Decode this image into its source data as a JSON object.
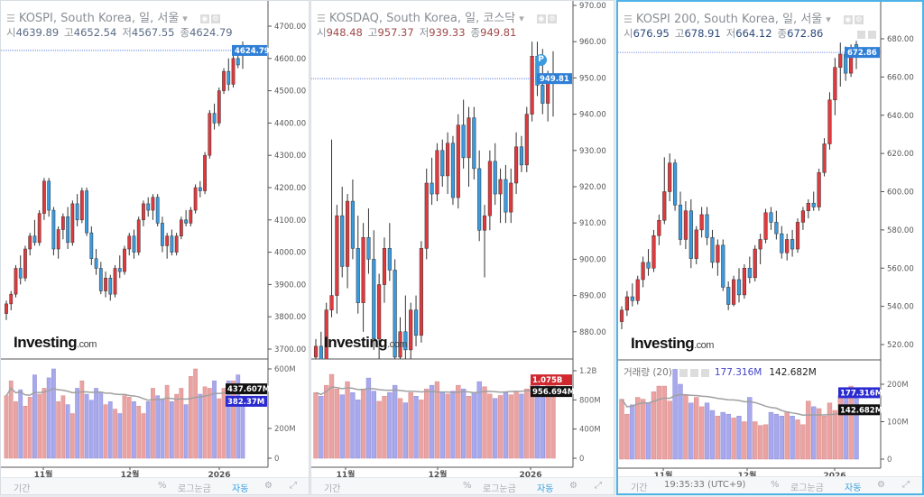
{
  "colors": {
    "up": "#e0393e",
    "down": "#3a9be0",
    "vol_up": "#eaa3a3",
    "vol_down": "#a8a8ec",
    "ma": "#a0a0a0",
    "last_line": "#4a6fe0"
  },
  "panels": [
    {
      "header": {
        "title": "KOSPI, South Korea, 일, 서울",
        "ohlc_labels": [
          "시",
          "고",
          "저",
          "종"
        ],
        "ohlc_values": [
          "4639.89",
          "4652.54",
          "4567.55",
          "4624.79"
        ],
        "value_color": "#5a6c86"
      },
      "logo": {
        "main": "Investing",
        "suffix": ".com"
      },
      "price_label": "4624.79",
      "price_label_color": "#2f7fd6",
      "volume_labels": [
        {
          "text": "437.607M",
          "color": "#111111"
        },
        {
          "text": "382.37M",
          "color": "#2a2ad0"
        }
      ],
      "price_ticks": [
        "3700.00",
        "3800.00",
        "3900.00",
        "4000.00",
        "4100.00",
        "4200.00",
        "4300.00",
        "4400.00",
        "4500.00",
        "4600.00",
        "4700.00"
      ],
      "volume_ticks": [
        "0",
        "200M",
        "600M"
      ],
      "date_ticks": [
        "11월",
        "12월",
        "2026"
      ],
      "toolbar": {
        "period": "기간",
        "time": "",
        "percent": "%",
        "log": "로그눈금",
        "auto": "자동"
      }
    },
    {
      "header": {
        "title": "KOSDAQ, South Korea, 일, 코스닥",
        "ohlc_labels": [
          "시",
          "고",
          "저",
          "종"
        ],
        "ohlc_values": [
          "948.48",
          "957.37",
          "939.33",
          "949.81"
        ],
        "value_color": "#a04a4a"
      },
      "logo": {
        "main": "Investing",
        "suffix": ".com"
      },
      "price_label": "949.81",
      "price_label_color": "#2f7fd6",
      "marker": "P",
      "volume_labels": [
        {
          "text": "1.075B",
          "color": "#d0282e"
        },
        {
          "text": "956.694M",
          "color": "#111111"
        }
      ],
      "price_ticks": [
        "880.00",
        "890.00",
        "900.00",
        "910.00",
        "920.00",
        "930.00",
        "940.00",
        "950.00",
        "960.00",
        "970.00"
      ],
      "volume_ticks": [
        "0",
        "400M",
        "800M",
        "1.2B"
      ],
      "date_ticks": [
        "11월",
        "12월",
        "2026"
      ],
      "toolbar": {
        "period": "기간",
        "time": "",
        "percent": "%",
        "log": "로그눈금",
        "auto": "자동"
      }
    },
    {
      "header": {
        "title": "KOSPI 200, South Korea, 일, 서울",
        "ohlc_labels": [
          "시",
          "고",
          "저",
          "종"
        ],
        "ohlc_values": [
          "676.95",
          "678.91",
          "664.12",
          "672.86"
        ],
        "value_color": "#2c4a7a"
      },
      "logo": {
        "main": "Investing",
        "suffix": ".com"
      },
      "price_label": "672.86",
      "price_label_color": "#2f7fd6",
      "volume_legend": {
        "name": "거래량 (20)",
        "value1": "177.316M",
        "value2": "142.682M"
      },
      "volume_labels": [
        {
          "text": "177.316M",
          "color": "#2a2ad0"
        },
        {
          "text": "142.682M",
          "color": "#111111"
        }
      ],
      "price_ticks": [
        "520.00",
        "540.00",
        "560.00",
        "580.00",
        "600.00",
        "620.00",
        "640.00",
        "660.00",
        "680.00"
      ],
      "volume_ticks": [
        "0",
        "100M",
        "200M"
      ],
      "date_ticks": [
        "11월",
        "12월",
        "2026"
      ],
      "toolbar": {
        "period": "기간",
        "time": "19:35:33 (UTC+9)",
        "percent": "%",
        "log": "로그눈금",
        "auto": "자동"
      }
    }
  ],
  "chart_data": [
    {
      "type": "candlestick",
      "title": "KOSPI, South Korea, 일, 서울",
      "ylim": [
        3700,
        4700
      ],
      "volume_ma_period": 20,
      "x_ticks": [
        "11월",
        "12월",
        "2026"
      ],
      "ohlc": [
        [
          3810,
          3850,
          3790,
          3840
        ],
        [
          3840,
          3880,
          3820,
          3870
        ],
        [
          3870,
          3960,
          3860,
          3950
        ],
        [
          3950,
          3990,
          3900,
          3920
        ],
        [
          3920,
          4020,
          3910,
          4010
        ],
        [
          4010,
          4060,
          3990,
          4050
        ],
        [
          4050,
          4100,
          4020,
          4030
        ],
        [
          4030,
          4130,
          4020,
          4120
        ],
        [
          4120,
          4230,
          4100,
          4220
        ],
        [
          4220,
          4230,
          4110,
          4130
        ],
        [
          4130,
          4140,
          3990,
          4010
        ],
        [
          4010,
          4080,
          3980,
          4070
        ],
        [
          4070,
          4120,
          4040,
          4110
        ],
        [
          4110,
          4140,
          4010,
          4030
        ],
        [
          4030,
          4160,
          4020,
          4150
        ],
        [
          4150,
          4180,
          4080,
          4100
        ],
        [
          4100,
          4200,
          4090,
          4190
        ],
        [
          4190,
          4200,
          4050,
          4060
        ],
        [
          4060,
          4080,
          3960,
          3980
        ],
        [
          3980,
          4010,
          3930,
          3950
        ],
        [
          3950,
          3970,
          3870,
          3880
        ],
        [
          3880,
          3940,
          3860,
          3920
        ],
        [
          3920,
          3930,
          3850,
          3870
        ],
        [
          3870,
          3960,
          3860,
          3950
        ],
        [
          3950,
          3990,
          3920,
          3940
        ],
        [
          3940,
          4020,
          3930,
          4010
        ],
        [
          4010,
          4060,
          3990,
          4050
        ],
        [
          4050,
          4070,
          3980,
          4000
        ],
        [
          4000,
          4110,
          3990,
          4100
        ],
        [
          4100,
          4160,
          4080,
          4150
        ],
        [
          4150,
          4170,
          4110,
          4130
        ],
        [
          4130,
          4180,
          4100,
          4170
        ],
        [
          4170,
          4180,
          4080,
          4090
        ],
        [
          4090,
          4110,
          4000,
          4020
        ],
        [
          4020,
          4060,
          3980,
          4050
        ],
        [
          4050,
          4070,
          3990,
          4000
        ],
        [
          4000,
          4060,
          3990,
          4050
        ],
        [
          4050,
          4110,
          4040,
          4100
        ],
        [
          4100,
          4130,
          4080,
          4090
        ],
        [
          4090,
          4140,
          4080,
          4130
        ],
        [
          4130,
          4210,
          4120,
          4200
        ],
        [
          4200,
          4220,
          4170,
          4190
        ],
        [
          4190,
          4310,
          4180,
          4300
        ],
        [
          4300,
          4440,
          4290,
          4430
        ],
        [
          4430,
          4460,
          4380,
          4400
        ],
        [
          4400,
          4510,
          4390,
          4500
        ],
        [
          4500,
          4570,
          4490,
          4560
        ],
        [
          4560,
          4600,
          4500,
          4520
        ],
        [
          4520,
          4610,
          4510,
          4600
        ],
        [
          4600,
          4640,
          4570,
          4580
        ],
        [
          4639.89,
          4652.54,
          4567.55,
          4624.79
        ]
      ],
      "volume_m": [
        420,
        520,
        380,
        460,
        350,
        410,
        560,
        430,
        470,
        540,
        600,
        380,
        420,
        360,
        300,
        470,
        520,
        430,
        390,
        470,
        440,
        360,
        380,
        330,
        300,
        420,
        410,
        380,
        350,
        300,
        380,
        470,
        420,
        400,
        490,
        380,
        430,
        470,
        360,
        550,
        600,
        430,
        480,
        470,
        520,
        400,
        470,
        520,
        520,
        560,
        382.37
      ],
      "volume_ylim_m": [
        0,
        600
      ]
    },
    {
      "type": "candlestick",
      "title": "KOSDAQ, South Korea, 일, 코스닥",
      "ylim": [
        870,
        970
      ],
      "volume_ma_period": 20,
      "x_ticks": [
        "11월",
        "12월",
        "2026"
      ],
      "ohlc": [
        [
          873,
          878,
          868,
          876
        ],
        [
          876,
          880,
          862,
          866
        ],
        [
          866,
          888,
          864,
          886
        ],
        [
          886,
          933,
          884,
          890
        ],
        [
          890,
          915,
          885,
          912
        ],
        [
          912,
          920,
          895,
          898
        ],
        [
          898,
          918,
          892,
          916
        ],
        [
          916,
          922,
          900,
          903
        ],
        [
          903,
          912,
          885,
          888
        ],
        [
          888,
          910,
          880,
          906
        ],
        [
          906,
          914,
          896,
          900
        ],
        [
          900,
          908,
          875,
          878
        ],
        [
          878,
          896,
          870,
          893
        ],
        [
          893,
          906,
          888,
          903
        ],
        [
          903,
          910,
          894,
          897
        ],
        [
          897,
          900,
          870,
          873
        ],
        [
          873,
          884,
          868,
          880
        ],
        [
          880,
          890,
          872,
          875
        ],
        [
          875,
          888,
          870,
          886
        ],
        [
          886,
          890,
          876,
          879
        ],
        [
          879,
          905,
          877,
          903
        ],
        [
          903,
          925,
          900,
          921
        ],
        [
          921,
          928,
          915,
          918
        ],
        [
          918,
          932,
          916,
          930
        ],
        [
          930,
          933,
          920,
          923
        ],
        [
          923,
          935,
          918,
          932
        ],
        [
          932,
          934,
          915,
          917
        ],
        [
          917,
          940,
          914,
          937
        ],
        [
          937,
          944,
          925,
          928
        ],
        [
          928,
          942,
          920,
          939
        ],
        [
          939,
          942,
          922,
          925
        ],
        [
          925,
          930,
          905,
          908
        ],
        [
          908,
          915,
          895,
          912
        ],
        [
          912,
          930,
          908,
          927
        ],
        [
          927,
          932,
          915,
          918
        ],
        [
          918,
          925,
          910,
          922
        ],
        [
          922,
          926,
          910,
          913
        ],
        [
          913,
          925,
          910,
          921
        ],
        [
          921,
          935,
          918,
          931
        ],
        [
          931,
          934,
          924,
          926
        ],
        [
          926,
          942,
          924,
          940
        ],
        [
          940,
          960,
          938,
          956
        ],
        [
          956,
          960,
          945,
          948
        ],
        [
          948,
          958,
          940,
          943
        ],
        [
          943,
          952,
          938,
          950
        ],
        [
          948.48,
          957.37,
          939.33,
          949.81
        ]
      ],
      "volume_m": [
        900,
        850,
        1000,
        1150,
        950,
        870,
        1050,
        900,
        800,
        950,
        1100,
        920,
        780,
        850,
        900,
        1000,
        820,
        760,
        900,
        850,
        800,
        950,
        1000,
        1050,
        900,
        880,
        920,
        1000,
        950,
        850,
        900,
        1050,
        980,
        880,
        820,
        860,
        900,
        870,
        920,
        880,
        950,
        1000,
        1050,
        980,
        1100,
        1075
      ],
      "volume_ylim_m": [
        0,
        1200
      ]
    },
    {
      "type": "candlestick",
      "title": "KOSPI 200, South Korea, 일, 서울",
      "ylim": [
        520,
        680
      ],
      "volume_ma_period": 20,
      "x_ticks": [
        "11월",
        "12월",
        "2026"
      ],
      "ohlc": [
        [
          532,
          540,
          528,
          538
        ],
        [
          538,
          548,
          535,
          545
        ],
        [
          545,
          552,
          540,
          543
        ],
        [
          543,
          556,
          541,
          554
        ],
        [
          554,
          566,
          550,
          563
        ],
        [
          563,
          570,
          556,
          560
        ],
        [
          560,
          580,
          558,
          577
        ],
        [
          577,
          588,
          572,
          585
        ],
        [
          585,
          618,
          583,
          600
        ],
        [
          600,
          620,
          595,
          615
        ],
        [
          615,
          617,
          590,
          593
        ],
        [
          593,
          600,
          572,
          575
        ],
        [
          575,
          595,
          570,
          590
        ],
        [
          590,
          596,
          560,
          565
        ],
        [
          565,
          582,
          562,
          580
        ],
        [
          580,
          592,
          576,
          588
        ],
        [
          588,
          592,
          572,
          576
        ],
        [
          576,
          580,
          560,
          563
        ],
        [
          563,
          575,
          556,
          572
        ],
        [
          572,
          575,
          548,
          550
        ],
        [
          550,
          553,
          538,
          541
        ],
        [
          541,
          556,
          540,
          554
        ],
        [
          554,
          560,
          542,
          546
        ],
        [
          546,
          562,
          544,
          560
        ],
        [
          560,
          566,
          552,
          555
        ],
        [
          555,
          572,
          553,
          570
        ],
        [
          570,
          578,
          562,
          575
        ],
        [
          575,
          591,
          573,
          589
        ],
        [
          589,
          592,
          580,
          584
        ],
        [
          584,
          590,
          575,
          578
        ],
        [
          578,
          582,
          565,
          568
        ],
        [
          568,
          578,
          564,
          575
        ],
        [
          575,
          580,
          566,
          570
        ],
        [
          570,
          586,
          568,
          584
        ],
        [
          584,
          592,
          580,
          590
        ],
        [
          590,
          596,
          586,
          594
        ],
        [
          594,
          600,
          590,
          592
        ],
        [
          592,
          612,
          590,
          610
        ],
        [
          610,
          628,
          608,
          625
        ],
        [
          625,
          652,
          622,
          648
        ],
        [
          648,
          670,
          640,
          665
        ],
        [
          665,
          678,
          655,
          672
        ],
        [
          672,
          676,
          658,
          662
        ],
        [
          662,
          677,
          660,
          675
        ],
        [
          676.95,
          678.91,
          664.12,
          672.86
        ]
      ],
      "volume_m": [
        160,
        120,
        145,
        165,
        160,
        150,
        180,
        195,
        195,
        155,
        240,
        200,
        170,
        150,
        165,
        140,
        150,
        130,
        115,
        125,
        120,
        110,
        115,
        100,
        165,
        100,
        90,
        92,
        125,
        120,
        115,
        125,
        115,
        105,
        92,
        155,
        140,
        135,
        115,
        150,
        130,
        170,
        190,
        195,
        177.316
      ],
      "volume_ylim_m": [
        0,
        200
      ]
    }
  ]
}
